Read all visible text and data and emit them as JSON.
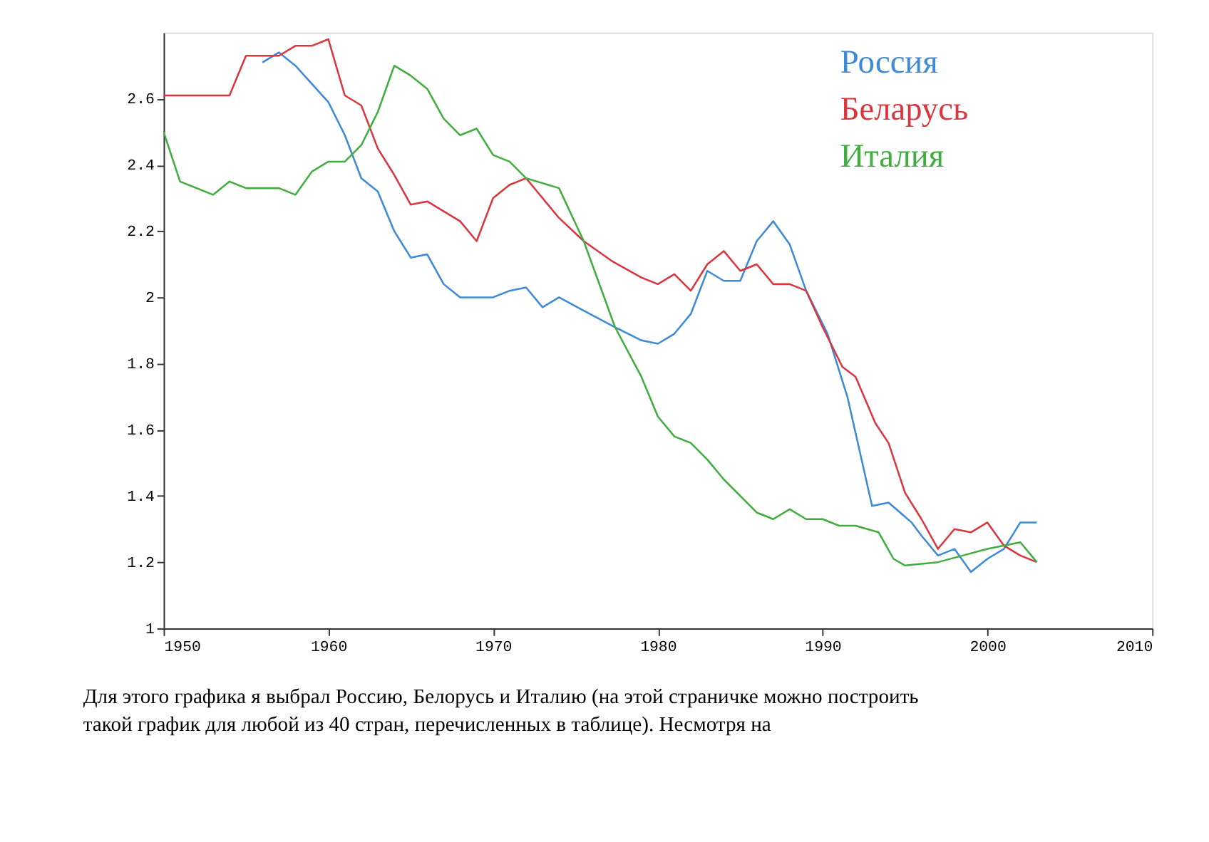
{
  "chart_data": {
    "type": "line",
    "xlim": [
      1950,
      2010
    ],
    "xticks": [
      1950,
      1960,
      1970,
      1980,
      1990,
      2000,
      2010
    ],
    "ylim": [
      1,
      2.8
    ],
    "yticks": [
      1,
      1.2,
      1.4,
      1.6,
      1.8,
      2,
      2.2,
      2.4,
      2.6
    ],
    "grid": false,
    "legend": "top right",
    "marker": "none",
    "line_style": "solid",
    "series": [
      {
        "name": "Россия",
        "color": "#3d8ad6",
        "x": [
          1956,
          1957,
          1958,
          1960,
          1961,
          1962,
          1963,
          1964,
          1965,
          1966,
          1967,
          1968,
          1970,
          1971,
          1972,
          1973,
          1974,
          1975.5,
          1977.4,
          1979,
          1980,
          1981,
          1982,
          1983,
          1984,
          1985,
          1986,
          1987,
          1988,
          1989,
          1990.3,
          1991.5,
          1993,
          1994,
          1995.4,
          1996,
          1997,
          1998,
          1999,
          2000,
          2001,
          2002,
          2003
        ],
        "values": [
          2.71,
          2.74,
          2.7,
          2.59,
          2.49,
          2.36,
          2.32,
          2.2,
          2.12,
          2.13,
          2.04,
          2.0,
          2.0,
          2.02,
          2.03,
          1.97,
          2.0,
          1.96,
          1.91,
          1.87,
          1.86,
          1.89,
          1.95,
          2.08,
          2.05,
          2.05,
          2.17,
          2.23,
          2.16,
          2.02,
          1.89,
          1.7,
          1.37,
          1.38,
          1.32,
          1.28,
          1.22,
          1.24,
          1.17,
          1.21,
          1.24,
          1.32,
          1.32
        ]
      },
      {
        "name": "Беларусь",
        "color": "#d9363e",
        "x": [
          1950,
          1954,
          1955,
          1957,
          1958,
          1959,
          1960,
          1961,
          1962,
          1963,
          1964,
          1965,
          1966,
          1967,
          1968,
          1969,
          1970,
          1971,
          1972,
          1973,
          1974,
          1975.5,
          1977.2,
          1979,
          1980,
          1981,
          1982,
          1983,
          1984,
          1985,
          1986,
          1987,
          1988,
          1989,
          1990,
          1991.2,
          1992,
          1993.2,
          1994,
          1995,
          1996,
          1997,
          1998,
          1999,
          2000,
          2001,
          2002,
          2003
        ],
        "values": [
          2.61,
          2.61,
          2.73,
          2.73,
          2.76,
          2.76,
          2.78,
          2.61,
          2.58,
          2.45,
          2.37,
          2.28,
          2.29,
          2.26,
          2.23,
          2.17,
          2.3,
          2.34,
          2.36,
          2.3,
          2.24,
          2.17,
          2.11,
          2.06,
          2.04,
          2.07,
          2.02,
          2.1,
          2.14,
          2.08,
          2.1,
          2.04,
          2.04,
          2.02,
          1.91,
          1.79,
          1.76,
          1.62,
          1.56,
          1.41,
          1.33,
          1.24,
          1.3,
          1.29,
          1.32,
          1.25,
          1.22,
          1.2
        ]
      },
      {
        "name": "Италия",
        "color": "#3fae3f",
        "x": [
          1950,
          1951,
          1953,
          1954,
          1955,
          1957,
          1958,
          1959,
          1960,
          1961,
          1962,
          1963,
          1964,
          1965,
          1966,
          1967,
          1968,
          1969,
          1970,
          1971,
          1972,
          1974,
          1975.5,
          1977.4,
          1979,
          1980,
          1981,
          1982,
          1983,
          1984,
          1985,
          1986,
          1987,
          1988,
          1989,
          1990,
          1991,
          1992,
          1993.4,
          1994.3,
          1995,
          1997,
          1998.5,
          2000,
          2002,
          2003
        ],
        "values": [
          2.5,
          2.35,
          2.31,
          2.35,
          2.33,
          2.33,
          2.31,
          2.38,
          2.41,
          2.41,
          2.46,
          2.56,
          2.7,
          2.67,
          2.63,
          2.54,
          2.49,
          2.51,
          2.43,
          2.41,
          2.36,
          2.33,
          2.17,
          1.91,
          1.76,
          1.64,
          1.58,
          1.56,
          1.51,
          1.45,
          1.4,
          1.35,
          1.33,
          1.36,
          1.33,
          1.33,
          1.31,
          1.31,
          1.29,
          1.21,
          1.19,
          1.2,
          1.22,
          1.24,
          1.26,
          1.2
        ]
      }
    ],
    "annotations": [
      "Для этого графика я выбрал Россию, Белорусь и Италию (на этой страничке можно построить такой график для любой из 40 стран, перечисленных в таблице). Несмотря на"
    ]
  }
}
